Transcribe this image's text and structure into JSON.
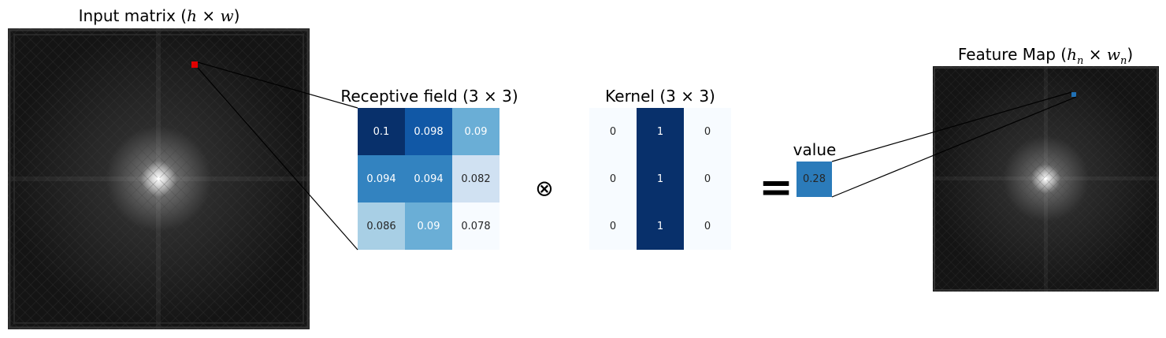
{
  "input_panel": {
    "title_prefix": "Input matrix (",
    "h": "h",
    "times": " × ",
    "w": "w",
    "title_suffix": ")"
  },
  "receptive_field": {
    "title": "Receptive field (3 × 3)",
    "cells": [
      [
        "0.1",
        "0.098",
        "0.09"
      ],
      [
        "0.094",
        "0.094",
        "0.082"
      ],
      [
        "0.086",
        "0.09",
        "0.078"
      ]
    ],
    "colors": [
      [
        "#08306b",
        "#1158a6",
        "#6aaed6"
      ],
      [
        "#3383c0",
        "#3383c0",
        "#d0e1f2"
      ],
      [
        "#a8cfe5",
        "#6aaed6",
        "#f7fbff"
      ]
    ],
    "text_colors": [
      [
        "#ffffff",
        "#ffffff",
        "#ffffff"
      ],
      [
        "#ffffff",
        "#ffffff",
        "#262626"
      ],
      [
        "#262626",
        "#ffffff",
        "#262626"
      ]
    ]
  },
  "operator_conv": "⊗",
  "kernel": {
    "title": "Kernel (3 × 3)",
    "cells": [
      [
        "0",
        "1",
        "0"
      ],
      [
        "0",
        "1",
        "0"
      ],
      [
        "0",
        "1",
        "0"
      ]
    ],
    "colors": [
      [
        "#f7fbff",
        "#08306b",
        "#f7fbff"
      ],
      [
        "#f7fbff",
        "#08306b",
        "#f7fbff"
      ],
      [
        "#f7fbff",
        "#08306b",
        "#f7fbff"
      ]
    ],
    "text_colors": [
      [
        "#262626",
        "#ffffff",
        "#262626"
      ],
      [
        "#262626",
        "#ffffff",
        "#262626"
      ],
      [
        "#262626",
        "#ffffff",
        "#262626"
      ]
    ]
  },
  "operator_equals": "=",
  "value": {
    "label": "value",
    "number": "0.28",
    "color": "#2b7bba"
  },
  "feature_map": {
    "title_prefix": "Feature Map (",
    "h": "h",
    "hsub": "n",
    "times": " × ",
    "w": "w",
    "wsub": "n",
    "title_suffix": ")"
  },
  "colors": {
    "highlight_input": "#e00000",
    "highlight_feature": "#2070b4",
    "connector": "#000000"
  }
}
